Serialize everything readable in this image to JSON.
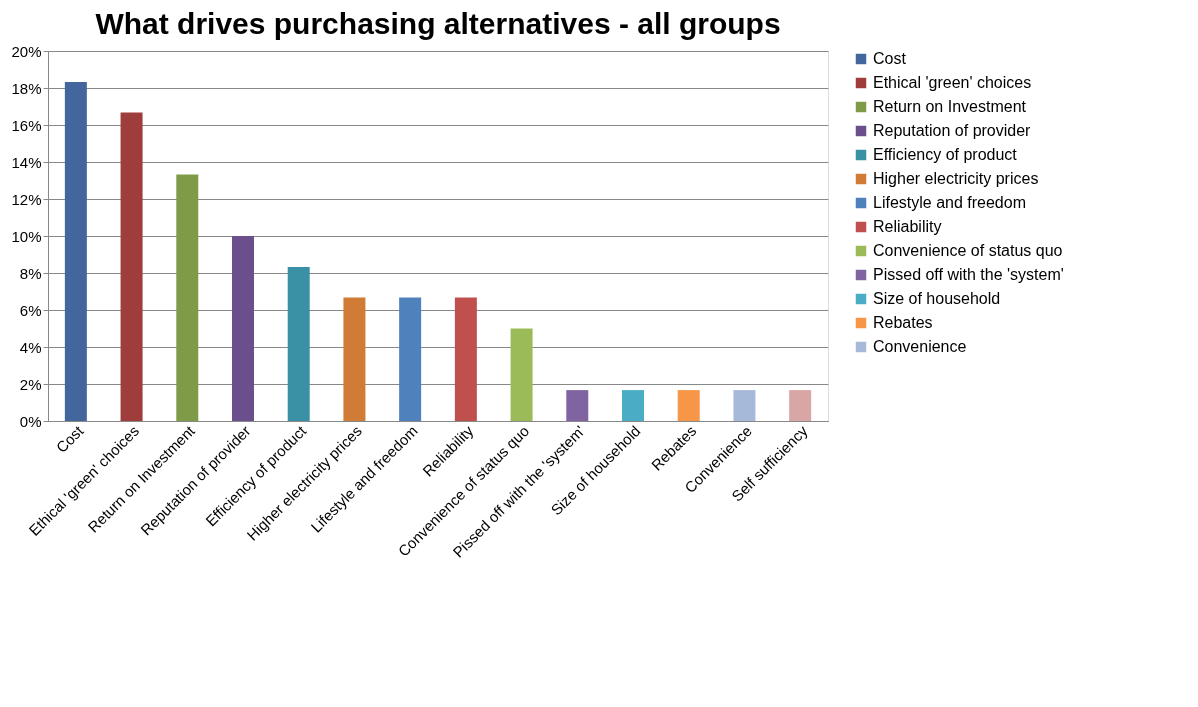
{
  "chart_data": {
    "type": "bar",
    "title": "What drives purchasing alternatives - all groups",
    "categories": [
      "Cost",
      "Ethical 'green' choices",
      "Return on Investment",
      "Reputation of provider",
      "Efficiency of product",
      "Higher electricity prices",
      "Lifestyle and freedom",
      "Reliability",
      "Convenience of status quo",
      "Pissed off with the 'system'",
      "Size of household",
      "Rebates",
      "Convenience",
      "Self sufficiency"
    ],
    "series": [
      {
        "name": "Cost",
        "color": "#43679c",
        "values": [
          18.33,
          null,
          null,
          null,
          null,
          null,
          null,
          null,
          null,
          null,
          null,
          null,
          null,
          null
        ]
      },
      {
        "name": "Ethical 'green' choices",
        "color": "#9e3d3b",
        "values": [
          null,
          16.67,
          null,
          null,
          null,
          null,
          null,
          null,
          null,
          null,
          null,
          null,
          null,
          null
        ]
      },
      {
        "name": "Return on Investment",
        "color": "#7f9b48",
        "values": [
          null,
          null,
          13.33,
          null,
          null,
          null,
          null,
          null,
          null,
          null,
          null,
          null,
          null,
          null
        ]
      },
      {
        "name": "Reputation of provider",
        "color": "#6b4f8c",
        "values": [
          null,
          null,
          null,
          10,
          null,
          null,
          null,
          null,
          null,
          null,
          null,
          null,
          null,
          null
        ]
      },
      {
        "name": "Efficiency of product",
        "color": "#3a91a5",
        "values": [
          null,
          null,
          null,
          null,
          8.33,
          null,
          null,
          null,
          null,
          null,
          null,
          null,
          null,
          null
        ]
      },
      {
        "name": "Higher electricity prices",
        "color": "#d07b36",
        "values": [
          null,
          null,
          null,
          null,
          null,
          6.67,
          null,
          null,
          null,
          null,
          null,
          null,
          null,
          null
        ]
      },
      {
        "name": "Lifestyle and freedom",
        "color": "#4f81bd",
        "values": [
          null,
          null,
          null,
          null,
          null,
          null,
          6.67,
          null,
          null,
          null,
          null,
          null,
          null,
          null
        ]
      },
      {
        "name": "Reliability",
        "color": "#c0504d",
        "values": [
          null,
          null,
          null,
          null,
          null,
          null,
          null,
          6.67,
          null,
          null,
          null,
          null,
          null,
          null
        ]
      },
      {
        "name": "Convenience of status quo",
        "color": "#9bbb59",
        "values": [
          null,
          null,
          null,
          null,
          null,
          null,
          null,
          null,
          5,
          null,
          null,
          null,
          null,
          null
        ]
      },
      {
        "name": "Pissed off with the 'system'",
        "color": "#8064a2",
        "values": [
          null,
          null,
          null,
          null,
          null,
          null,
          null,
          null,
          null,
          1.67,
          null,
          null,
          null,
          null
        ]
      },
      {
        "name": "Size of household",
        "color": "#4bacc6",
        "values": [
          null,
          null,
          null,
          null,
          null,
          null,
          null,
          null,
          null,
          null,
          1.67,
          null,
          null,
          null
        ]
      },
      {
        "name": "Rebates",
        "color": "#f79646",
        "values": [
          null,
          null,
          null,
          null,
          null,
          null,
          null,
          null,
          null,
          null,
          null,
          1.67,
          null,
          null
        ]
      },
      {
        "name": "Convenience",
        "color": "#a7b9d9",
        "values": [
          null,
          null,
          null,
          null,
          null,
          null,
          null,
          null,
          null,
          null,
          null,
          null,
          1.67,
          null
        ]
      },
      {
        "color": "#d9a6a6",
        "values": [
          null,
          null,
          null,
          null,
          null,
          null,
          null,
          null,
          null,
          null,
          null,
          null,
          null,
          1.67
        ]
      }
    ],
    "ylim": [
      0,
      20
    ],
    "yticks": [
      {
        "value": 0,
        "label": "0%"
      },
      {
        "value": 2,
        "label": "2%"
      },
      {
        "value": 4,
        "label": "4%"
      },
      {
        "value": 6,
        "label": "6%"
      },
      {
        "value": 8,
        "label": "8%"
      },
      {
        "value": 10,
        "label": "10%"
      },
      {
        "value": 12,
        "label": "12%"
      },
      {
        "value": 14,
        "label": "14%"
      },
      {
        "value": 16,
        "label": "16%"
      },
      {
        "value": 18,
        "label": "18%"
      },
      {
        "value": 20,
        "label": "20%"
      }
    ],
    "grid": "y",
    "legend": "right"
  }
}
